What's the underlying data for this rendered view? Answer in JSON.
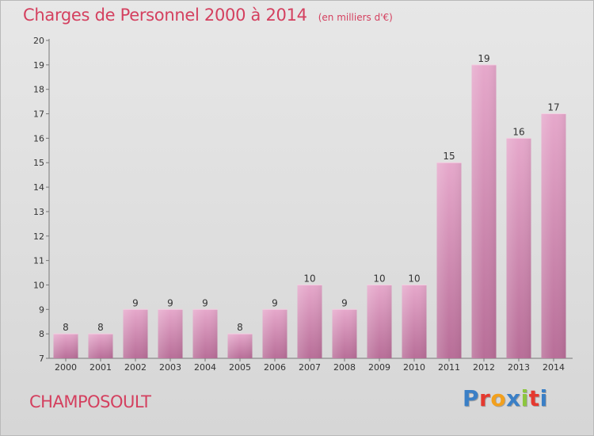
{
  "title": "Charges de Personnel 2000 à 2014",
  "unit": "(en milliers d'€)",
  "commune": "CHAMPOSOULT",
  "logo": {
    "letters": [
      "P",
      "r",
      "o",
      "x",
      "i",
      "t",
      "i"
    ]
  },
  "colors": {
    "title": "#d4405f",
    "bar_light": "#e6a8cb",
    "bar_dark": "#b86e98",
    "logo": [
      "#3a7fc6",
      "#e5392f",
      "#f2a01d",
      "#3a7fc6",
      "#8cc63e",
      "#e5392f",
      "#3a7fc6"
    ]
  },
  "chart_data": {
    "type": "bar",
    "categories": [
      "2000",
      "2001",
      "2002",
      "2003",
      "2004",
      "2005",
      "2006",
      "2007",
      "2008",
      "2009",
      "2010",
      "2011",
      "2012",
      "2013",
      "2014"
    ],
    "values": [
      8,
      8,
      9,
      9,
      9,
      8,
      9,
      10,
      9,
      10,
      10,
      15,
      19,
      16,
      17
    ],
    "ylim": [
      7,
      20
    ],
    "yticks": [
      7,
      8,
      9,
      10,
      11,
      12,
      13,
      14,
      15,
      16,
      17,
      18,
      19,
      20
    ],
    "grid": false,
    "data_labels": true
  }
}
